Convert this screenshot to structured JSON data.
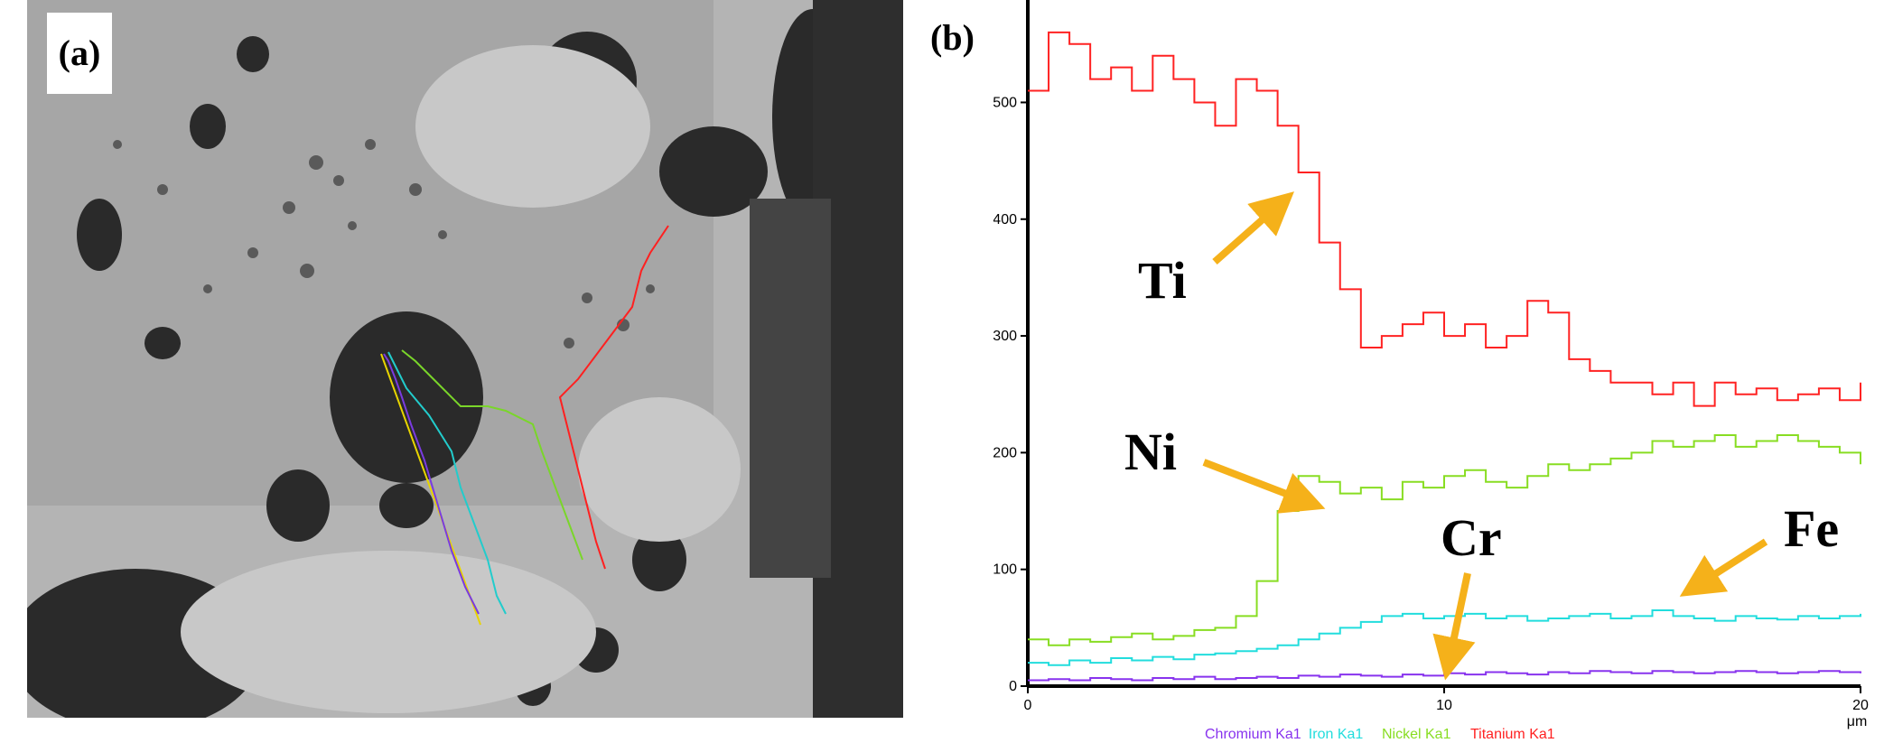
{
  "panel_a": {
    "label": "(a)"
  },
  "panel_b": {
    "label": "(b)"
  },
  "chart_data": {
    "type": "line",
    "xlabel": "μm",
    "x_ticks": [
      "0",
      "10",
      "20"
    ],
    "y_ticks": [
      "0",
      "100",
      "200",
      "300",
      "400",
      "500"
    ],
    "xlim": [
      0,
      20
    ],
    "ylim": [
      0,
      580
    ],
    "annotations": [
      "Ti",
      "Ni",
      "Cr",
      "Fe"
    ],
    "legend": [
      "Chromium Ka1",
      "Iron Ka1",
      "Nickel Ka1",
      "Titanium Ka1"
    ],
    "series": [
      {
        "name": "Titanium Ka1",
        "color": "#ff2222",
        "x": [
          0,
          0.5,
          1,
          1.5,
          2,
          2.5,
          3,
          3.5,
          4,
          4.5,
          5,
          5.5,
          6,
          6.5,
          7,
          7.5,
          8,
          8.5,
          9,
          9.5,
          10,
          10.5,
          11,
          11.5,
          12,
          12.5,
          13,
          13.5,
          14,
          14.5,
          15,
          15.5,
          16,
          16.5,
          17,
          17.5,
          18,
          18.5,
          19,
          19.5,
          20
        ],
        "y": [
          510,
          560,
          550,
          520,
          530,
          510,
          540,
          520,
          500,
          480,
          520,
          510,
          480,
          440,
          380,
          340,
          290,
          300,
          310,
          320,
          300,
          310,
          290,
          300,
          330,
          320,
          280,
          270,
          260,
          260,
          250,
          260,
          240,
          260,
          250,
          255,
          245,
          250,
          255,
          245,
          260
        ]
      },
      {
        "name": "Nickel Ka1",
        "color": "#88dd22",
        "x": [
          0,
          0.5,
          1,
          1.5,
          2,
          2.5,
          3,
          3.5,
          4,
          4.5,
          5,
          5.5,
          6,
          6.5,
          7,
          7.5,
          8,
          8.5,
          9,
          9.5,
          10,
          10.5,
          11,
          11.5,
          12,
          12.5,
          13,
          13.5,
          14,
          14.5,
          15,
          15.5,
          16,
          16.5,
          17,
          17.5,
          18,
          18.5,
          19,
          19.5,
          20
        ],
        "y": [
          40,
          35,
          40,
          38,
          42,
          45,
          40,
          43,
          48,
          50,
          60,
          90,
          150,
          180,
          175,
          165,
          170,
          160,
          175,
          170,
          180,
          185,
          175,
          170,
          180,
          190,
          185,
          190,
          195,
          200,
          210,
          205,
          210,
          215,
          205,
          210,
          215,
          210,
          205,
          200,
          190
        ]
      },
      {
        "name": "Iron Ka1",
        "color": "#22dddd",
        "x": [
          0,
          0.5,
          1,
          1.5,
          2,
          2.5,
          3,
          3.5,
          4,
          4.5,
          5,
          5.5,
          6,
          6.5,
          7,
          7.5,
          8,
          8.5,
          9,
          9.5,
          10,
          10.5,
          11,
          11.5,
          12,
          12.5,
          13,
          13.5,
          14,
          14.5,
          15,
          15.5,
          16,
          16.5,
          17,
          17.5,
          18,
          18.5,
          19,
          19.5,
          20
        ],
        "y": [
          20,
          18,
          22,
          20,
          24,
          22,
          25,
          23,
          27,
          28,
          30,
          32,
          35,
          40,
          45,
          50,
          55,
          60,
          62,
          58,
          60,
          62,
          58,
          60,
          56,
          58,
          60,
          62,
          58,
          60,
          65,
          60,
          58,
          56,
          60,
          58,
          57,
          60,
          58,
          60,
          62
        ]
      },
      {
        "name": "Chromium Ka1",
        "color": "#8833ee",
        "x": [
          0,
          0.5,
          1,
          1.5,
          2,
          2.5,
          3,
          3.5,
          4,
          4.5,
          5,
          5.5,
          6,
          6.5,
          7,
          7.5,
          8,
          8.5,
          9,
          9.5,
          10,
          10.5,
          11,
          11.5,
          12,
          12.5,
          13,
          13.5,
          14,
          14.5,
          15,
          15.5,
          16,
          16.5,
          17,
          17.5,
          18,
          18.5,
          19,
          19.5,
          20
        ],
        "y": [
          5,
          6,
          5,
          7,
          6,
          5,
          7,
          6,
          8,
          6,
          7,
          8,
          7,
          9,
          8,
          10,
          9,
          8,
          10,
          9,
          11,
          10,
          12,
          11,
          10,
          12,
          11,
          13,
          12,
          11,
          13,
          12,
          11,
          12,
          13,
          12,
          11,
          12,
          13,
          12,
          11
        ]
      }
    ]
  }
}
